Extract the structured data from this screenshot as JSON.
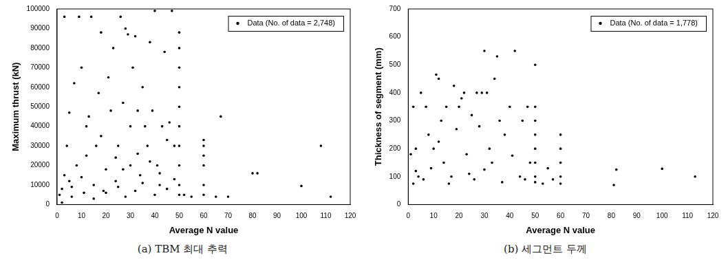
{
  "chart_data": [
    {
      "type": "scatter",
      "title": "(a) TBM 최대 추력",
      "x_label": "Average N value",
      "y_label": "Maximum thrust (kN)",
      "xlim": [
        0,
        120
      ],
      "xticks": [
        0,
        10,
        20,
        30,
        40,
        50,
        60,
        70,
        80,
        90,
        100,
        110,
        120
      ],
      "ylim": [
        0,
        100000
      ],
      "yticks": [
        0,
        10000,
        20000,
        30000,
        40000,
        50000,
        60000,
        70000,
        80000,
        90000,
        100000
      ],
      "grid": false,
      "legend": "upper right",
      "series": [
        {
          "name": "Data (No. of data = 2,748)",
          "color": "#000000",
          "marker": "circle",
          "x": [
            1,
            2,
            3,
            3,
            4,
            5,
            5,
            6,
            7,
            8,
            9,
            10,
            11,
            12,
            13,
            14,
            15,
            16,
            17,
            18,
            19,
            20,
            21,
            22,
            23,
            24,
            25,
            26,
            27,
            28,
            29,
            30,
            30,
            31,
            32,
            33,
            34,
            35,
            36,
            37,
            38,
            39,
            40,
            41,
            42,
            43,
            44,
            45,
            47,
            48,
            50,
            50,
            50,
            50,
            50,
            50,
            50,
            50,
            50,
            50,
            2,
            6,
            10,
            15,
            20,
            25,
            28,
            32,
            35,
            40,
            45,
            48,
            12,
            18,
            24,
            27,
            33,
            38,
            42,
            46,
            52,
            55,
            60,
            60,
            60,
            60,
            60,
            60,
            65,
            67,
            70,
            80,
            82,
            100,
            108,
            112
          ],
          "values": [
            5000,
            8000,
            15000,
            96000,
            30000,
            12000,
            47000,
            4000,
            62000,
            20000,
            96000,
            70000,
            6000,
            25000,
            45000,
            96000,
            10000,
            30000,
            57000,
            88000,
            7000,
            18000,
            65000,
            48000,
            80000,
            12000,
            30000,
            96000,
            52000,
            90000,
            87000,
            40000,
            20000,
            70000,
            86000,
            48000,
            15000,
            60000,
            40000,
            30000,
            83000,
            48000,
            99000,
            20000,
            10000,
            40000,
            78000,
            33000,
            99000,
            30000,
            88000,
            80000,
            70000,
            60000,
            50000,
            40000,
            30000,
            20000,
            10000,
            5000,
            1000,
            9000,
            14000,
            3000,
            6000,
            9000,
            4000,
            7000,
            11000,
            5000,
            8000,
            13000,
            40000,
            35000,
            24000,
            18000,
            26000,
            22000,
            16000,
            42000,
            5000,
            4000,
            33000,
            30000,
            25000,
            20000,
            10000,
            5000,
            4000,
            45000,
            4000,
            16000,
            16000,
            9500,
            30000,
            4000
          ]
        }
      ]
    },
    {
      "type": "scatter",
      "title": "(b) 세그먼트 두께",
      "x_label": "Average N value",
      "y_label": "Thickness of segment (mm)",
      "xlim": [
        0,
        120
      ],
      "xticks": [
        0,
        10,
        20,
        30,
        40,
        50,
        60,
        70,
        80,
        90,
        100,
        110,
        120
      ],
      "ylim": [
        0,
        700
      ],
      "yticks": [
        0,
        100,
        200,
        300,
        400,
        500,
        600,
        700
      ],
      "grid": false,
      "legend": "upper right",
      "series": [
        {
          "name": "Data (No. of data = 1,778)",
          "color": "#000000",
          "marker": "circle",
          "x": [
            1,
            2,
            3,
            5,
            6,
            7,
            8,
            10,
            11,
            12,
            13,
            14,
            15,
            17,
            18,
            19,
            20,
            21,
            22,
            23,
            25,
            26,
            27,
            28,
            29,
            30,
            31,
            32,
            33,
            34,
            35,
            36,
            38,
            40,
            42,
            44,
            45,
            47,
            48,
            50,
            50,
            50,
            50,
            50,
            50,
            50,
            50,
            2,
            4,
            9,
            16,
            24,
            30,
            37,
            41,
            46,
            53,
            55,
            57,
            60,
            60,
            60,
            60,
            60,
            81,
            82,
            100,
            113,
            3,
            12
          ],
          "values": [
            180,
            350,
            120,
            400,
            90,
            350,
            250,
            200,
            465,
            450,
            300,
            150,
            350,
            100,
            425,
            270,
            350,
            380,
            400,
            180,
            320,
            90,
            400,
            280,
            400,
            550,
            400,
            200,
            150,
            450,
            530,
            300,
            250,
            350,
            550,
            100,
            300,
            350,
            150,
            500,
            350,
            300,
            250,
            200,
            150,
            100,
            80,
            75,
            100,
            130,
            75,
            110,
            125,
            80,
            175,
            90,
            75,
            130,
            90,
            250,
            200,
            150,
            100,
            75,
            70,
            125,
            128,
            100,
            200,
            225
          ]
        }
      ]
    }
  ]
}
